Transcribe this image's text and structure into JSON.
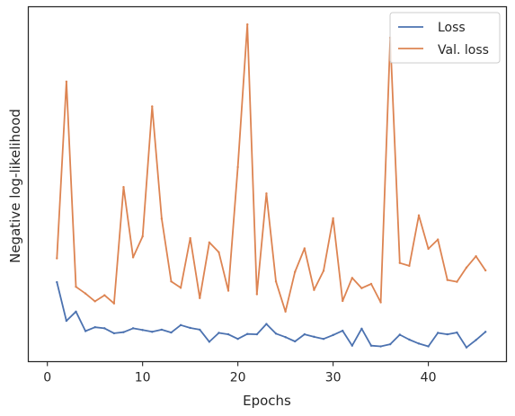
{
  "chart_data": {
    "type": "line",
    "title": "",
    "xlabel": "Epochs",
    "ylabel": "Negative log-likelihood",
    "xlim": [
      -2,
      48.2
    ],
    "ylim": [
      0,
      1
    ],
    "xticks": [
      0,
      10,
      20,
      30,
      40
    ],
    "yticks_labeled": false,
    "grid": false,
    "legend_position": "top-right",
    "x": [
      1,
      2,
      3,
      4,
      5,
      6,
      7,
      8,
      9,
      10,
      11,
      12,
      13,
      14,
      15,
      16,
      17,
      18,
      19,
      20,
      21,
      22,
      23,
      24,
      25,
      26,
      27,
      28,
      29,
      30,
      31,
      32,
      33,
      34,
      35,
      36,
      37,
      38,
      39,
      40,
      41,
      42,
      43,
      44,
      45,
      46
    ],
    "series": [
      {
        "name": "Loss",
        "color": "#4c72b0",
        "values": [
          0.224,
          0.115,
          0.141,
          0.086,
          0.097,
          0.094,
          0.08,
          0.083,
          0.094,
          0.089,
          0.084,
          0.09,
          0.082,
          0.103,
          0.095,
          0.09,
          0.056,
          0.081,
          0.077,
          0.064,
          0.078,
          0.077,
          0.106,
          0.079,
          0.069,
          0.057,
          0.077,
          0.07,
          0.064,
          0.075,
          0.087,
          0.045,
          0.093,
          0.045,
          0.043,
          0.049,
          0.076,
          0.062,
          0.051,
          0.043,
          0.081,
          0.077,
          0.082,
          0.04,
          0.061,
          0.084
        ]
      },
      {
        "name": "Val. loss",
        "color": "#dd8452",
        "values": [
          0.291,
          0.789,
          0.211,
          0.192,
          0.17,
          0.187,
          0.164,
          0.492,
          0.294,
          0.353,
          0.719,
          0.403,
          0.226,
          0.208,
          0.348,
          0.179,
          0.336,
          0.308,
          0.2,
          0.548,
          0.95,
          0.19,
          0.474,
          0.226,
          0.141,
          0.253,
          0.319,
          0.202,
          0.256,
          0.404,
          0.171,
          0.236,
          0.207,
          0.219,
          0.167,
          0.913,
          0.278,
          0.27,
          0.412,
          0.318,
          0.344,
          0.23,
          0.225,
          0.265,
          0.297,
          0.257
        ]
      }
    ]
  }
}
